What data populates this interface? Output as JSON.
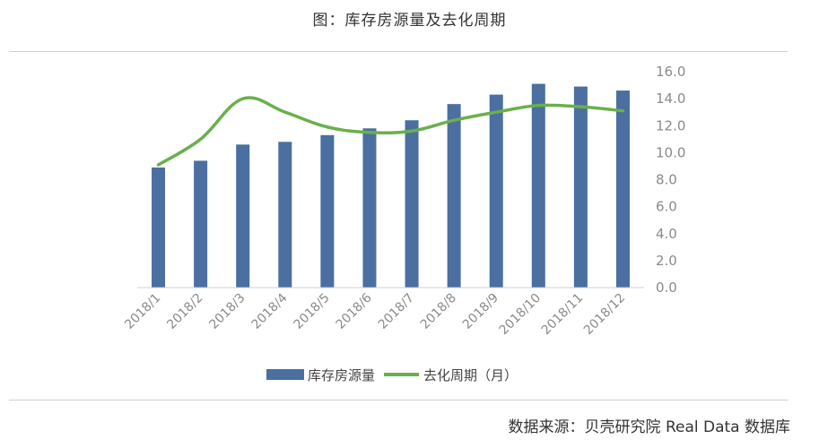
{
  "chart_data": {
    "type": "bar+line",
    "title": "图：库存房源量及去化周期",
    "categories": [
      "2018/1",
      "2018/2",
      "2018/3",
      "2018/4",
      "2018/5",
      "2018/6",
      "2018/7",
      "2018/8",
      "2018/9",
      "2018/10",
      "2018/11",
      "2018/12"
    ],
    "series": [
      {
        "name": "库存房源量",
        "type": "bar",
        "color": "#4a6fa0",
        "values": [
          8.9,
          9.4,
          10.6,
          10.8,
          11.3,
          11.8,
          12.4,
          13.6,
          14.3,
          15.1,
          14.9,
          14.6
        ]
      },
      {
        "name": "去化周期（月）",
        "type": "line",
        "color": "#6ab04c",
        "values": [
          9.1,
          11.0,
          14.0,
          13.0,
          11.9,
          11.5,
          11.6,
          12.4,
          13.0,
          13.5,
          13.4,
          13.1
        ]
      }
    ],
    "yticks": [
      "0.0",
      "2.0",
      "4.0",
      "6.0",
      "8.0",
      "10.0",
      "12.0",
      "14.0",
      "16.0"
    ],
    "ylim": [
      0,
      16
    ],
    "legend_position": "bottom"
  },
  "source": "数据来源：贝壳研究院 Real Data 数据库"
}
